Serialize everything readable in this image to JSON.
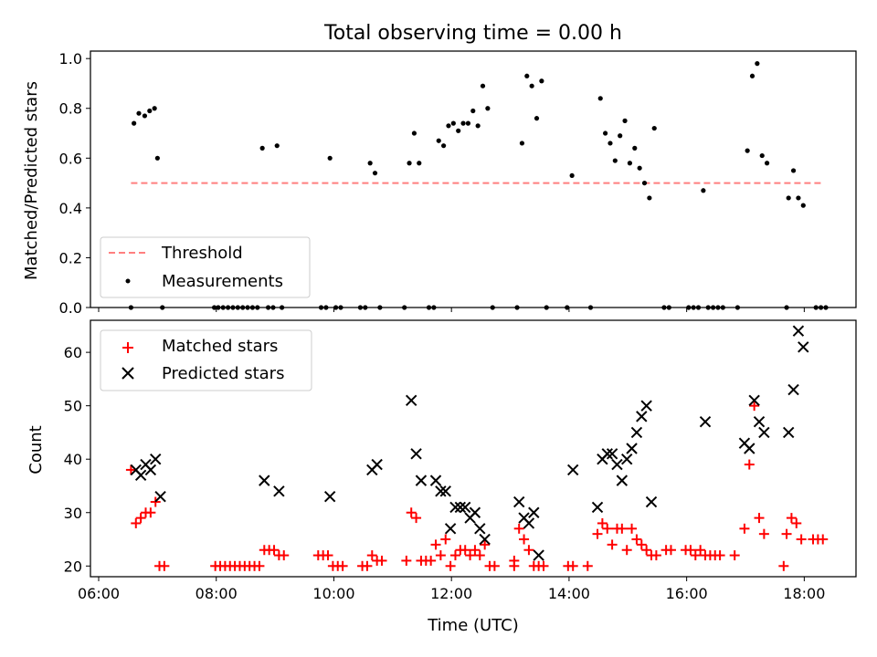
{
  "chart_data": [
    {
      "type": "scatter",
      "title": "Total observing time = 0.00 h",
      "xlabel": "",
      "ylabel": "Matched/Predicted stars",
      "xlim": [
        "06:00",
        "19:00"
      ],
      "ylim": [
        0,
        1.03
      ],
      "x_ticks": [
        "06:00",
        "08:00",
        "10:00",
        "12:00",
        "14:00",
        "16:00",
        "18:00"
      ],
      "y_ticks": [
        "0.0",
        "0.2",
        "0.4",
        "0.6",
        "0.8",
        "1.0"
      ],
      "legend_position": "lower-left",
      "threshold": {
        "name": "Threshold",
        "value": 0.5,
        "x_start": "06:33",
        "x_end": "18:20",
        "color": "#ff7f7f"
      },
      "series": [
        {
          "name": "Measurements",
          "marker": "dot",
          "color": "#000000",
          "points": [
            [
              "06:33",
              0
            ],
            [
              "06:36",
              0.74
            ],
            [
              "06:41",
              0.78
            ],
            [
              "06:47",
              0.77
            ],
            [
              "06:52",
              0.79
            ],
            [
              "06:57",
              0.8
            ],
            [
              "07:00",
              0.6
            ],
            [
              "07:05",
              0
            ],
            [
              "07:58",
              0
            ],
            [
              "08:02",
              0
            ],
            [
              "08:07",
              0
            ],
            [
              "08:12",
              0
            ],
            [
              "08:17",
              0
            ],
            [
              "08:22",
              0
            ],
            [
              "08:27",
              0
            ],
            [
              "08:32",
              0
            ],
            [
              "08:37",
              0
            ],
            [
              "08:42",
              0
            ],
            [
              "08:47",
              0.64
            ],
            [
              "08:53",
              0
            ],
            [
              "08:58",
              0
            ],
            [
              "09:02",
              0.65
            ],
            [
              "09:07",
              0
            ],
            [
              "09:47",
              0
            ],
            [
              "09:52",
              0
            ],
            [
              "09:56",
              0.6
            ],
            [
              "10:02",
              0
            ],
            [
              "10:07",
              0
            ],
            [
              "10:27",
              0
            ],
            [
              "10:32",
              0
            ],
            [
              "10:37",
              0.58
            ],
            [
              "10:42",
              0.54
            ],
            [
              "10:47",
              0
            ],
            [
              "11:12",
              0
            ],
            [
              "11:17",
              0.58
            ],
            [
              "11:22",
              0.7
            ],
            [
              "11:27",
              0.58
            ],
            [
              "11:37",
              0
            ],
            [
              "11:42",
              0
            ],
            [
              "11:47",
              0.67
            ],
            [
              "11:52",
              0.65
            ],
            [
              "11:57",
              0.73
            ],
            [
              "12:02",
              0.74
            ],
            [
              "12:07",
              0.71
            ],
            [
              "12:12",
              0.74
            ],
            [
              "12:17",
              0.74
            ],
            [
              "12:22",
              0.79
            ],
            [
              "12:27",
              0.73
            ],
            [
              "12:32",
              0.89
            ],
            [
              "12:37",
              0.8
            ],
            [
              "12:42",
              0
            ],
            [
              "13:07",
              0
            ],
            [
              "13:12",
              0.66
            ],
            [
              "13:17",
              0.93
            ],
            [
              "13:22",
              0.89
            ],
            [
              "13:27",
              0.76
            ],
            [
              "13:32",
              0.91
            ],
            [
              "13:37",
              0
            ],
            [
              "13:58",
              0
            ],
            [
              "14:03",
              0.53
            ],
            [
              "14:22",
              0
            ],
            [
              "14:32",
              0.84
            ],
            [
              "14:37",
              0.7
            ],
            [
              "14:42",
              0.66
            ],
            [
              "14:47",
              0.59
            ],
            [
              "14:52",
              0.69
            ],
            [
              "14:57",
              0.75
            ],
            [
              "15:02",
              0.58
            ],
            [
              "15:07",
              0.64
            ],
            [
              "15:12",
              0.56
            ],
            [
              "15:17",
              0.5
            ],
            [
              "15:22",
              0.44
            ],
            [
              "15:27",
              0.72
            ],
            [
              "15:37",
              0
            ],
            [
              "15:42",
              0
            ],
            [
              "16:02",
              0
            ],
            [
              "16:07",
              0
            ],
            [
              "16:12",
              0
            ],
            [
              "16:17",
              0.47
            ],
            [
              "16:22",
              0
            ],
            [
              "16:27",
              0
            ],
            [
              "16:32",
              0
            ],
            [
              "16:37",
              0
            ],
            [
              "16:52",
              0
            ],
            [
              "17:02",
              0.63
            ],
            [
              "17:07",
              0.93
            ],
            [
              "17:12",
              0.98
            ],
            [
              "17:17",
              0.61
            ],
            [
              "17:22",
              0.58
            ],
            [
              "17:42",
              0
            ],
            [
              "17:44",
              0.44
            ],
            [
              "17:49",
              0.55
            ],
            [
              "17:54",
              0.44
            ],
            [
              "17:59",
              0.41
            ],
            [
              "18:12",
              0
            ],
            [
              "18:17",
              0
            ],
            [
              "18:22",
              0
            ]
          ]
        }
      ]
    },
    {
      "type": "scatter",
      "title": "",
      "xlabel": "Time (UTC)",
      "ylabel": "Count",
      "xlim": [
        "06:00",
        "19:00"
      ],
      "ylim": [
        18,
        66
      ],
      "x_ticks": [
        "06:00",
        "08:00",
        "10:00",
        "12:00",
        "14:00",
        "16:00",
        "18:00"
      ],
      "y_ticks": [
        "20",
        "30",
        "40",
        "50",
        "60"
      ],
      "legend_position": "upper-left",
      "series": [
        {
          "name": "Matched stars",
          "marker": "plus",
          "color": "#ff0000",
          "points": [
            [
              "06:33",
              38
            ],
            [
              "06:38",
              28
            ],
            [
              "06:43",
              29
            ],
            [
              "06:48",
              30
            ],
            [
              "06:53",
              30
            ],
            [
              "06:58",
              32
            ],
            [
              "07:02",
              20
            ],
            [
              "07:07",
              20
            ],
            [
              "07:59",
              20
            ],
            [
              "08:04",
              20
            ],
            [
              "08:09",
              20
            ],
            [
              "08:14",
              20
            ],
            [
              "08:19",
              20
            ],
            [
              "08:24",
              20
            ],
            [
              "08:29",
              20
            ],
            [
              "08:34",
              20
            ],
            [
              "08:39",
              20
            ],
            [
              "08:44",
              20
            ],
            [
              "08:49",
              23
            ],
            [
              "08:54",
              23
            ],
            [
              "08:59",
              23
            ],
            [
              "09:04",
              22
            ],
            [
              "09:09",
              22
            ],
            [
              "09:44",
              22
            ],
            [
              "09:49",
              22
            ],
            [
              "09:54",
              22
            ],
            [
              "09:59",
              20
            ],
            [
              "10:04",
              20
            ],
            [
              "10:09",
              20
            ],
            [
              "10:29",
              20
            ],
            [
              "10:34",
              20
            ],
            [
              "10:39",
              22
            ],
            [
              "10:44",
              21
            ],
            [
              "10:49",
              21
            ],
            [
              "11:14",
              21
            ],
            [
              "11:19",
              30
            ],
            [
              "11:24",
              29
            ],
            [
              "11:29",
              21
            ],
            [
              "11:34",
              21
            ],
            [
              "11:39",
              21
            ],
            [
              "11:44",
              24
            ],
            [
              "11:49",
              22
            ],
            [
              "11:54",
              25
            ],
            [
              "11:59",
              20
            ],
            [
              "12:04",
              22
            ],
            [
              "12:09",
              23
            ],
            [
              "12:14",
              23
            ],
            [
              "12:19",
              22
            ],
            [
              "12:24",
              23
            ],
            [
              "12:29",
              22
            ],
            [
              "12:34",
              24
            ],
            [
              "12:39",
              20
            ],
            [
              "12:44",
              20
            ],
            [
              "13:04",
              20
            ],
            [
              "13:04",
              21
            ],
            [
              "13:09",
              27
            ],
            [
              "13:14",
              25
            ],
            [
              "13:19",
              23
            ],
            [
              "13:24",
              20
            ],
            [
              "13:29",
              20
            ],
            [
              "13:34",
              20
            ],
            [
              "13:59",
              20
            ],
            [
              "14:04",
              20
            ],
            [
              "14:19",
              20
            ],
            [
              "14:29",
              26
            ],
            [
              "14:34",
              28
            ],
            [
              "14:39",
              27
            ],
            [
              "14:44",
              24
            ],
            [
              "14:49",
              27
            ],
            [
              "14:54",
              27
            ],
            [
              "14:59",
              23
            ],
            [
              "15:04",
              27
            ],
            [
              "15:09",
              25
            ],
            [
              "15:14",
              24
            ],
            [
              "15:19",
              23
            ],
            [
              "15:24",
              22
            ],
            [
              "15:29",
              22
            ],
            [
              "15:39",
              23
            ],
            [
              "15:44",
              23
            ],
            [
              "15:59",
              23
            ],
            [
              "16:04",
              23
            ],
            [
              "16:09",
              22
            ],
            [
              "16:14",
              23
            ],
            [
              "16:19",
              22
            ],
            [
              "16:24",
              22
            ],
            [
              "16:29",
              22
            ],
            [
              "16:34",
              22
            ],
            [
              "16:49",
              22
            ],
            [
              "16:59",
              27
            ],
            [
              "17:04",
              39
            ],
            [
              "17:09",
              50
            ],
            [
              "17:14",
              29
            ],
            [
              "17:19",
              26
            ],
            [
              "17:39",
              20
            ],
            [
              "17:42",
              26
            ],
            [
              "17:47",
              29
            ],
            [
              "17:52",
              28
            ],
            [
              "17:57",
              25
            ],
            [
              "18:09",
              25
            ],
            [
              "18:14",
              25
            ],
            [
              "18:19",
              25
            ]
          ]
        },
        {
          "name": "Predicted stars",
          "marker": "x",
          "color": "#000000",
          "points": [
            [
              "06:38",
              38
            ],
            [
              "06:43",
              37
            ],
            [
              "06:48",
              39
            ],
            [
              "06:53",
              38
            ],
            [
              "06:58",
              40
            ],
            [
              "07:03",
              33
            ],
            [
              "08:49",
              36
            ],
            [
              "09:04",
              34
            ],
            [
              "09:56",
              33
            ],
            [
              "10:39",
              38
            ],
            [
              "10:44",
              39
            ],
            [
              "11:19",
              51
            ],
            [
              "11:24",
              41
            ],
            [
              "11:29",
              36
            ],
            [
              "11:44",
              36
            ],
            [
              "11:49",
              34
            ],
            [
              "11:54",
              34
            ],
            [
              "11:59",
              27
            ],
            [
              "12:04",
              31
            ],
            [
              "12:09",
              31
            ],
            [
              "12:14",
              31
            ],
            [
              "12:19",
              29
            ],
            [
              "12:24",
              30
            ],
            [
              "12:29",
              27
            ],
            [
              "12:34",
              25
            ],
            [
              "13:09",
              32
            ],
            [
              "13:14",
              29
            ],
            [
              "13:19",
              28
            ],
            [
              "13:24",
              30
            ],
            [
              "13:29",
              22
            ],
            [
              "14:04",
              38
            ],
            [
              "14:29",
              31
            ],
            [
              "14:34",
              40
            ],
            [
              "14:39",
              41
            ],
            [
              "14:44",
              41
            ],
            [
              "14:49",
              39
            ],
            [
              "14:54",
              36
            ],
            [
              "14:59",
              40
            ],
            [
              "15:04",
              42
            ],
            [
              "15:09",
              45
            ],
            [
              "15:14",
              48
            ],
            [
              "15:19",
              50
            ],
            [
              "15:24",
              32
            ],
            [
              "16:19",
              47
            ],
            [
              "16:59",
              43
            ],
            [
              "17:04",
              42
            ],
            [
              "17:09",
              51
            ],
            [
              "17:14",
              47
            ],
            [
              "17:19",
              45
            ],
            [
              "17:44",
              45
            ],
            [
              "17:49",
              53
            ],
            [
              "17:54",
              64
            ],
            [
              "17:59",
              61
            ]
          ]
        }
      ]
    }
  ]
}
